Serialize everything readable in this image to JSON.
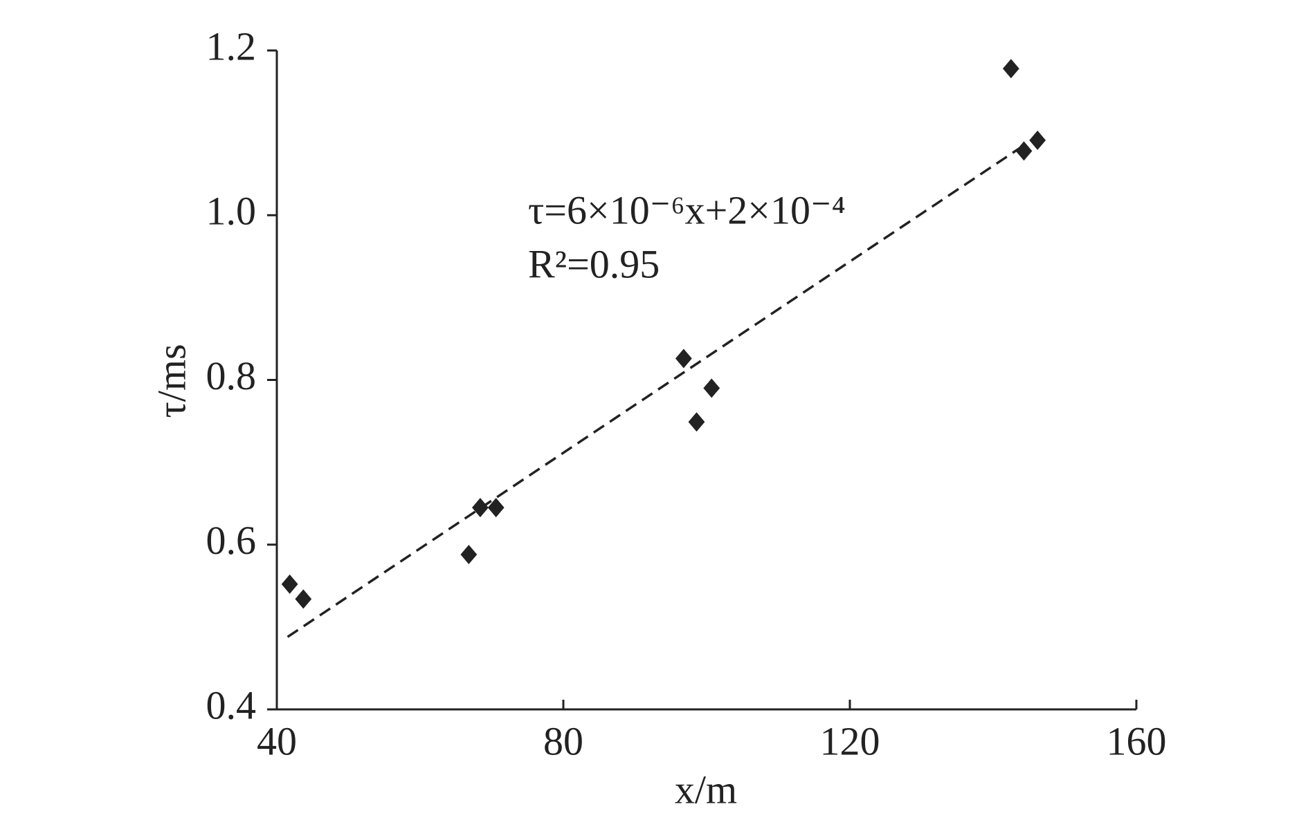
{
  "chart_data": {
    "type": "scatter",
    "xlabel": "x/m",
    "ylabel": "τ/ms",
    "annotations": [
      "τ=6×10⁻⁶x+2×10⁻⁴",
      "R²=0.95"
    ],
    "x": [
      41.8,
      43.7,
      66.8,
      68.4,
      70.6,
      96.8,
      98.6,
      100.7,
      142.5,
      144.3,
      146.2
    ],
    "values": [
      0.552,
      0.534,
      0.588,
      0.645,
      0.645,
      0.826,
      0.749,
      0.79,
      1.178,
      1.078,
      1.091
    ],
    "color": "#222222",
    "trendline": {
      "x": [
        41.5,
        144.5
      ],
      "values": [
        0.488,
        1.086
      ]
    },
    "xlim": [
      40,
      160
    ],
    "xticks": [
      40,
      80,
      120,
      160
    ],
    "ylim": [
      0.4,
      1.2
    ],
    "yticks": [
      0.4,
      0.6,
      0.8,
      {
        "value": 1,
        "label": "1.0"
      },
      1.2
    ],
    "grid": false
  }
}
